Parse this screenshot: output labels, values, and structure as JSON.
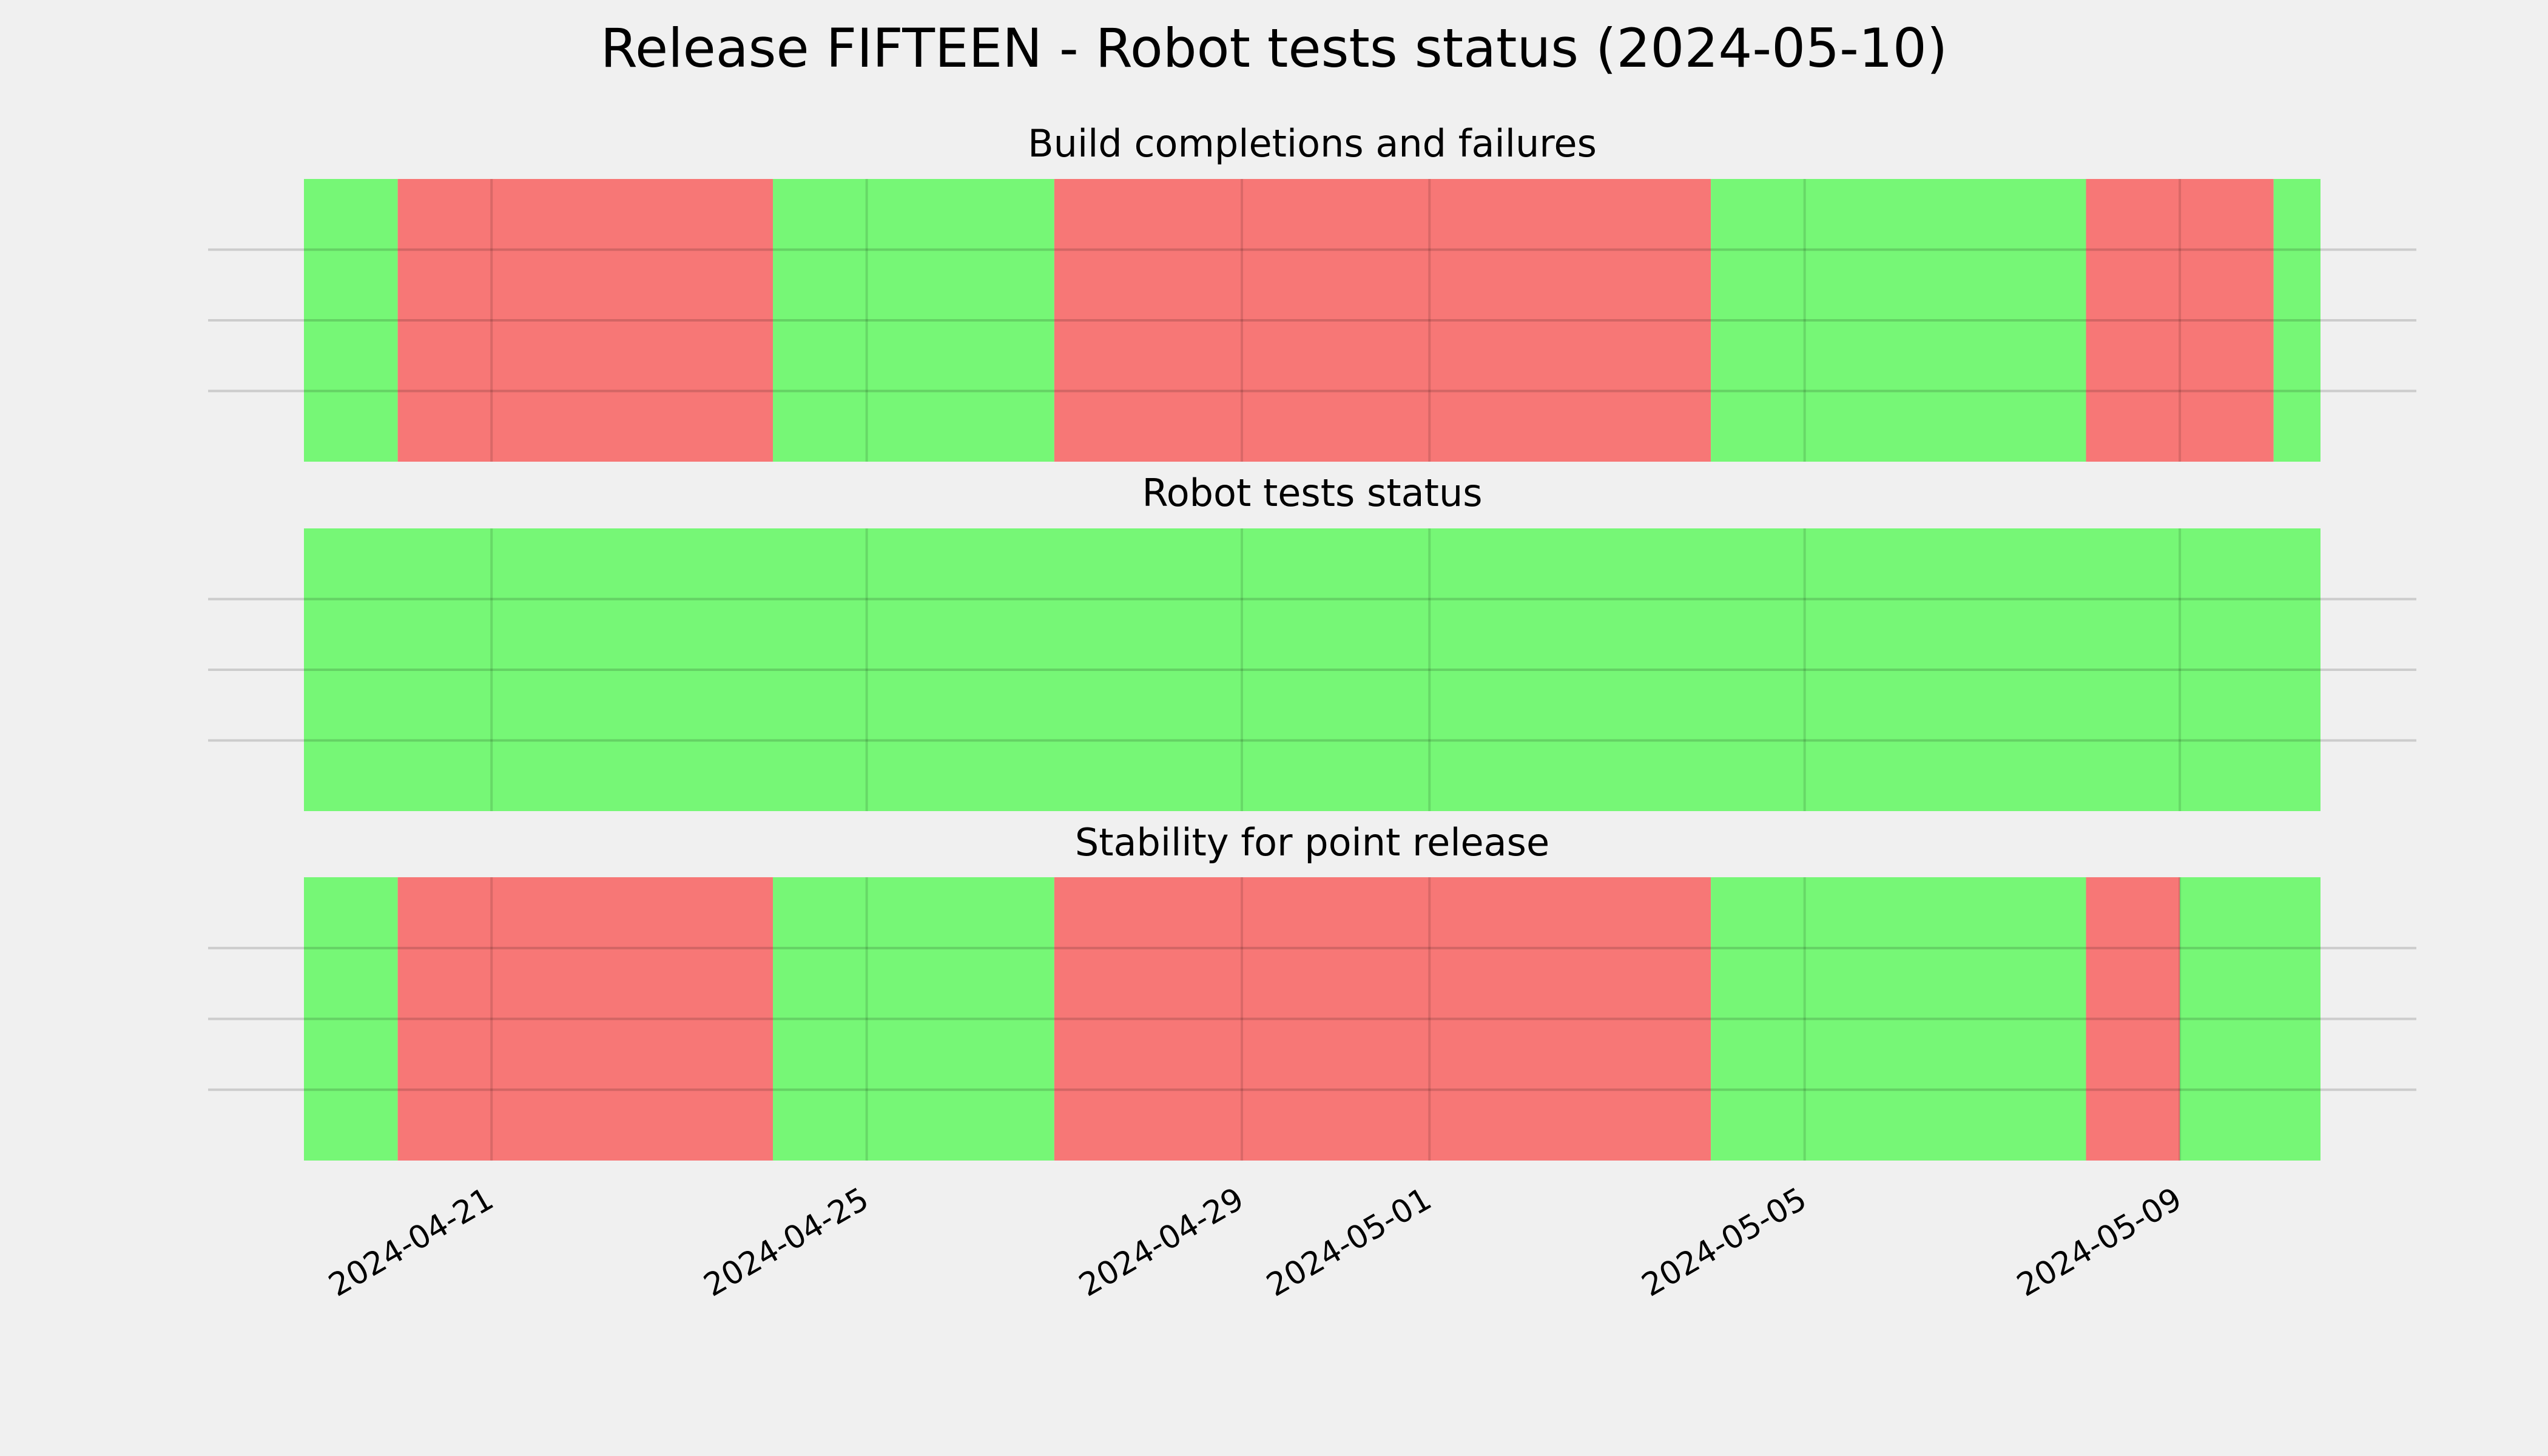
{
  "chart_data": {
    "type": "status-timeline",
    "title": "Release FIFTEEN - Robot tests status (2024-05-10)",
    "xlim": [
      "2024-04-19",
      "2024-05-10T12:00"
    ],
    "xticks": [
      "2024-04-21",
      "2024-04-25",
      "2024-04-29",
      "2024-05-01",
      "2024-05-05",
      "2024-05-09"
    ],
    "ylim": [
      0,
      1
    ],
    "yticks": [
      0.25,
      0.5,
      0.75
    ],
    "grid": true,
    "panels": [
      {
        "title": "Build completions and failures",
        "segments": [
          {
            "start": "2024-04-19",
            "end": "2024-04-20",
            "color": "#76f776"
          },
          {
            "start": "2024-04-20",
            "end": "2024-04-24",
            "color": "#f77776"
          },
          {
            "start": "2024-04-24",
            "end": "2024-04-27",
            "color": "#76f776"
          },
          {
            "start": "2024-04-27",
            "end": "2024-05-04",
            "color": "#f77776"
          },
          {
            "start": "2024-05-04",
            "end": "2024-05-08",
            "color": "#76f776"
          },
          {
            "start": "2024-05-08",
            "end": "2024-05-10",
            "color": "#f77776"
          },
          {
            "start": "2024-05-10",
            "end": "2024-05-10T12:00",
            "color": "#76f776"
          }
        ]
      },
      {
        "title": "Robot tests status",
        "segments": [
          {
            "start": "2024-04-19",
            "end": "2024-05-10T12:00",
            "color": "#76f776"
          }
        ]
      },
      {
        "title": "Stability for point release",
        "segments": [
          {
            "start": "2024-04-19",
            "end": "2024-04-20",
            "color": "#76f776"
          },
          {
            "start": "2024-04-20",
            "end": "2024-04-24",
            "color": "#f77776"
          },
          {
            "start": "2024-04-24",
            "end": "2024-04-27",
            "color": "#76f776"
          },
          {
            "start": "2024-04-27",
            "end": "2024-05-04",
            "color": "#f77776"
          },
          {
            "start": "2024-05-04",
            "end": "2024-05-08",
            "color": "#76f776"
          },
          {
            "start": "2024-05-08",
            "end": "2024-05-09",
            "color": "#f77776"
          },
          {
            "start": "2024-05-09",
            "end": "2024-05-10T12:00",
            "color": "#76f776"
          }
        ]
      }
    ]
  }
}
